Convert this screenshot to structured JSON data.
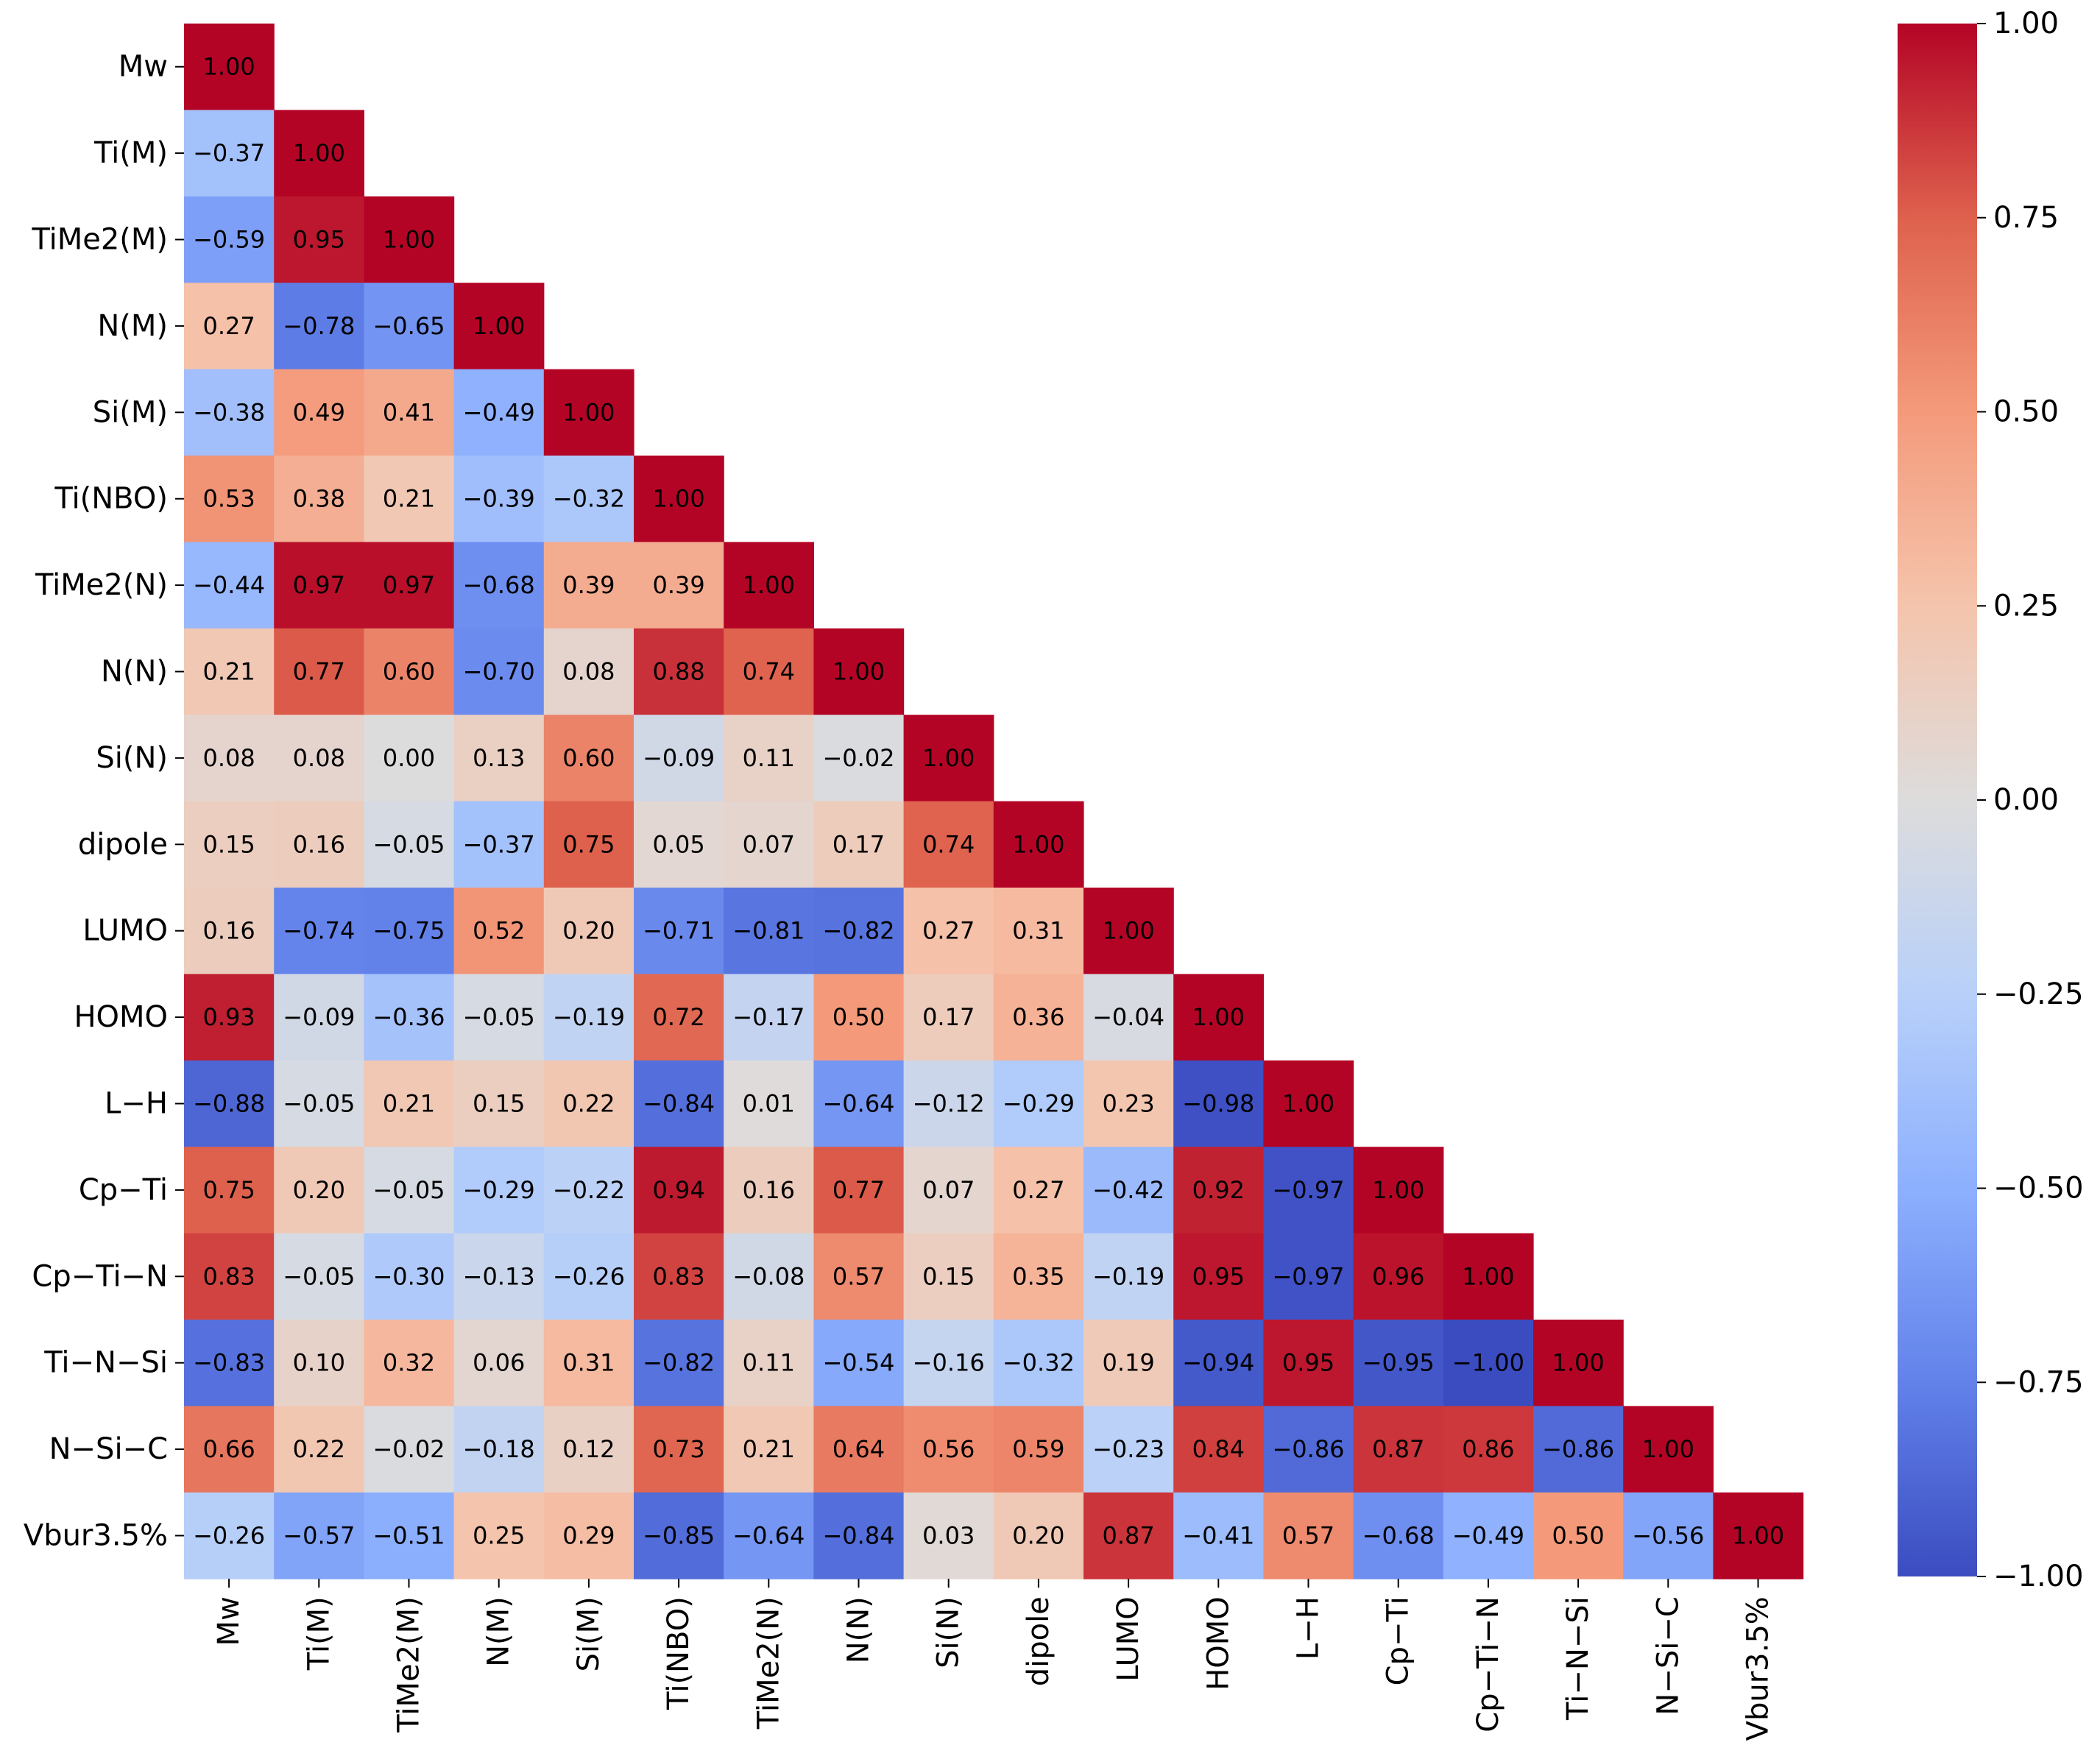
{
  "chart_data": {
    "type": "heatmap",
    "title": "",
    "xlabel": "",
    "ylabel": "",
    "variables": [
      "Mw",
      "Ti(M)",
      "TiMe2(M)",
      "N(M)",
      "Si(M)",
      "Ti(NBO)",
      "TiMe2(N)",
      "N(N)",
      "Si(N)",
      "dipole",
      "LUMO",
      "HOMO",
      "L−H",
      "Cp−Ti",
      "Cp−Ti−N",
      "Ti−N−Si",
      "N−Si−C",
      "Vbur3.5%"
    ],
    "matrix": [
      [
        1.0
      ],
      [
        -0.37,
        1.0
      ],
      [
        -0.59,
        0.95,
        1.0
      ],
      [
        0.27,
        -0.78,
        -0.65,
        1.0
      ],
      [
        -0.38,
        0.49,
        0.41,
        -0.49,
        1.0
      ],
      [
        0.53,
        0.38,
        0.21,
        -0.39,
        -0.32,
        1.0
      ],
      [
        -0.44,
        0.97,
        0.97,
        -0.68,
        0.39,
        0.39,
        1.0
      ],
      [
        0.21,
        0.77,
        0.6,
        -0.7,
        0.08,
        0.88,
        0.74,
        1.0
      ],
      [
        0.08,
        0.08,
        -0.0,
        0.13,
        0.6,
        -0.09,
        0.11,
        -0.02,
        1.0
      ],
      [
        0.15,
        0.16,
        -0.05,
        -0.37,
        0.75,
        0.05,
        0.07,
        0.17,
        0.74,
        1.0
      ],
      [
        0.16,
        -0.74,
        -0.75,
        0.52,
        0.2,
        -0.71,
        -0.81,
        -0.82,
        0.27,
        0.31,
        1.0
      ],
      [
        0.93,
        -0.09,
        -0.36,
        -0.05,
        -0.19,
        0.72,
        -0.17,
        0.5,
        0.17,
        0.36,
        -0.04,
        1.0
      ],
      [
        -0.88,
        -0.05,
        0.21,
        0.15,
        0.22,
        -0.84,
        0.01,
        -0.64,
        -0.12,
        -0.29,
        0.23,
        -0.98,
        1.0
      ],
      [
        0.75,
        0.2,
        -0.05,
        -0.29,
        -0.22,
        0.94,
        0.16,
        0.77,
        0.07,
        0.27,
        -0.42,
        0.92,
        -0.97,
        1.0
      ],
      [
        0.83,
        -0.05,
        -0.3,
        -0.13,
        -0.26,
        0.83,
        -0.08,
        0.57,
        0.15,
        0.35,
        -0.19,
        0.95,
        -0.97,
        0.96,
        1.0
      ],
      [
        -0.83,
        0.1,
        0.32,
        0.06,
        0.31,
        -0.82,
        0.11,
        -0.54,
        -0.16,
        -0.32,
        0.19,
        -0.94,
        0.95,
        -0.95,
        -1.0,
        1.0
      ],
      [
        0.66,
        0.22,
        -0.02,
        -0.18,
        0.12,
        0.73,
        0.21,
        0.64,
        0.56,
        0.59,
        -0.23,
        0.84,
        -0.86,
        0.87,
        0.86,
        -0.86,
        1.0
      ],
      [
        -0.26,
        -0.57,
        -0.51,
        0.25,
        0.29,
        -0.85,
        -0.64,
        -0.84,
        0.03,
        0.2,
        0.87,
        -0.41,
        0.57,
        -0.68,
        -0.49,
        0.5,
        -0.56,
        1.0
      ]
    ],
    "value_format": "2 decimals",
    "vmin": -1.0,
    "vmax": 1.0,
    "colormap": "coolwarm",
    "colormap_stops": [
      "#3b4cc0",
      "#6282ea",
      "#8db0fe",
      "#b8d0f9",
      "#dddcdc",
      "#f5c4ac",
      "#f49a7b",
      "#de614d",
      "#b40426"
    ],
    "colorbar_ticks": [
      1.0,
      0.75,
      0.5,
      0.25,
      0.0,
      -0.25,
      -0.5,
      -0.75,
      -1.0
    ],
    "colorbar_tick_labels": [
      "1.00",
      "0.75",
      "0.50",
      "0.25",
      "0.00",
      "−0.25",
      "−0.50",
      "−0.75",
      "−1.00"
    ],
    "lower_triangle_only": true
  }
}
